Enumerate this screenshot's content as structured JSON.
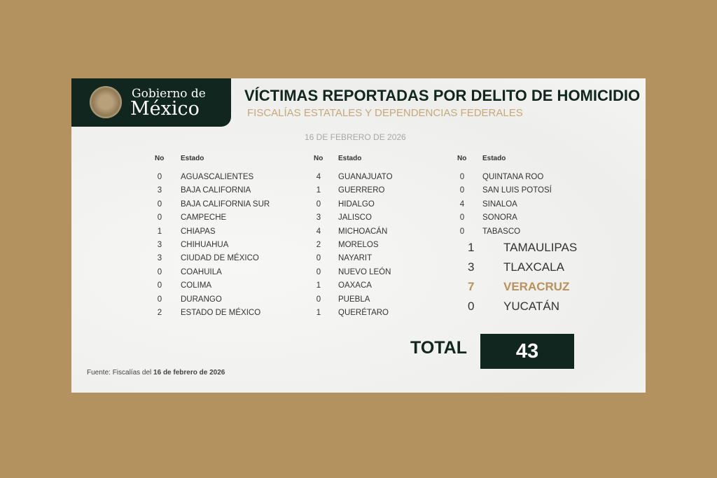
{
  "header": {
    "logo_line1": "Gobierno de",
    "logo_line2": "México",
    "title": "VÍCTIMAS REPORTADAS POR DELITO DE HOMICIDIO",
    "subtitle": "FISCALÍAS ESTATALES Y DEPENDENCIAS FEDERALES",
    "date": "16 DE FEBRERO DE 2026"
  },
  "columns_header": {
    "no": "No",
    "estado": "Estado"
  },
  "col1": [
    [
      "0",
      "AGUASCALIENTES"
    ],
    [
      "3",
      "BAJA CALIFORNIA"
    ],
    [
      "0",
      "BAJA CALIFORNIA SUR"
    ],
    [
      "0",
      "CAMPECHE"
    ],
    [
      "1",
      "CHIAPAS"
    ],
    [
      "3",
      "CHIHUAHUA"
    ],
    [
      "3",
      "CIUDAD DE MÉXICO"
    ],
    [
      "0",
      "COAHUILA"
    ],
    [
      "0",
      "COLIMA"
    ],
    [
      "0",
      "DURANGO"
    ],
    [
      "2",
      "ESTADO DE MÉXICO"
    ]
  ],
  "col2": [
    [
      "4",
      "GUANAJUATO"
    ],
    [
      "1",
      "GUERRERO"
    ],
    [
      "0",
      "HIDALGO"
    ],
    [
      "3",
      "JALISCO"
    ],
    [
      "4",
      "MICHOACÁN"
    ],
    [
      "2",
      "MORELOS"
    ],
    [
      "0",
      "NAYARIT"
    ],
    [
      "0",
      "NUEVO LEÓN"
    ],
    [
      "1",
      "OAXACA"
    ],
    [
      "0",
      "PUEBLA"
    ],
    [
      "1",
      "QUERÉTARO"
    ]
  ],
  "col3": [
    [
      "0",
      "QUINTANA ROO"
    ],
    [
      "0",
      "SAN LUIS POTOSÍ"
    ],
    [
      "4",
      "SINALOA"
    ],
    [
      "0",
      "SONORA"
    ],
    [
      "0",
      "TABASCO"
    ]
  ],
  "col3_big": [
    [
      "1",
      "TAMAULIPAS"
    ],
    [
      "3",
      "TLAXCALA"
    ],
    [
      "7",
      "VERACRUZ"
    ],
    [
      "0",
      "YUCATÁN"
    ]
  ],
  "highlight_state": "VERACRUZ",
  "total": {
    "label": "TOTAL",
    "value": "43"
  },
  "source": {
    "prefix": "Fuente: Fiscalías del ",
    "date": "16 de febrero de 2026"
  },
  "colors": {
    "dark_green": "#10261f",
    "gold": "#b8925a",
    "background": "#b3925f"
  }
}
